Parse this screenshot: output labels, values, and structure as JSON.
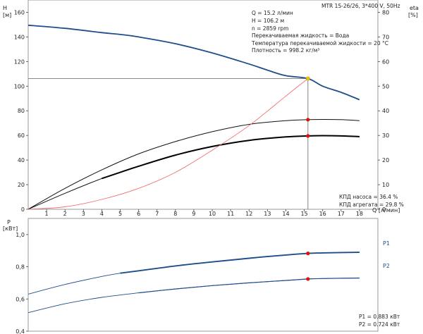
{
  "chart_data": [
    {
      "type": "line",
      "title": "MTR 1S-26/26, 3*400 V, 50Hz",
      "xlabel": "Q [л/мин]",
      "ylabel_left": "H",
      "ylabel_left_unit": "[м]",
      "ylabel_right": "eta",
      "ylabel_right_unit": "[%]",
      "xlim": [
        0,
        19
      ],
      "ylim_left": [
        0,
        170
      ],
      "ylim_right": [
        0,
        85
      ],
      "x_ticks": [
        1,
        2,
        3,
        4,
        5,
        6,
        7,
        8,
        9,
        10,
        11,
        12,
        13,
        14,
        15,
        16,
        17,
        18
      ],
      "y_ticks_left": [
        0,
        20,
        40,
        60,
        80,
        100,
        120,
        140,
        160
      ],
      "y_ticks_right": [
        0,
        10,
        20,
        30,
        40,
        50,
        60,
        70,
        80
      ],
      "duty_point": {
        "Q": 15.2,
        "H": 106.2
      },
      "info": [
        "Q = 15.2 л/мин",
        "H = 106.2 м",
        "n = 2859 rpm",
        "Перекачиваемая жидкость = Вода",
        "Температура перекачиваемой жидкости = 20 °C",
        "Плотность = 998.2 кг/м³"
      ],
      "efficiency_text": [
        "КПД насоса = 36.4 %",
        "КПД агрегата = 29.8 %"
      ],
      "series": [
        {
          "key": "H",
          "axis": "left",
          "x": [
            0,
            2,
            4,
            5,
            6,
            8,
            10,
            12,
            13,
            14,
            15.2,
            16,
            17,
            18
          ],
          "values": [
            149.5,
            147,
            143.5,
            142,
            140,
            134.5,
            127,
            118,
            113,
            108.5,
            106.2,
            100,
            95,
            89
          ]
        },
        {
          "key": "pump_eff",
          "axis": "right",
          "x": [
            0,
            2,
            4,
            6,
            8,
            10,
            12,
            14,
            15.2,
            16,
            17,
            18
          ],
          "values": [
            0,
            8.5,
            16,
            22.5,
            27.5,
            31.5,
            34.5,
            36,
            36.4,
            36.5,
            36.4,
            36
          ]
        },
        {
          "key": "unit_eff",
          "axis": "right",
          "x": [
            0,
            2,
            4,
            5,
            6,
            8,
            10,
            12,
            14,
            15.2,
            16,
            17,
            18
          ],
          "values": [
            0,
            6.5,
            12.5,
            15,
            17.5,
            22,
            25.5,
            28,
            29.4,
            29.8,
            29.9,
            29.8,
            29.5
          ]
        },
        {
          "key": "system",
          "axis": "left",
          "x": [
            0,
            2,
            4,
            6,
            8,
            10,
            12,
            14,
            15.2
          ],
          "values": [
            0,
            2,
            8,
            17,
            30,
            48,
            68,
            92,
            106.2
          ]
        }
      ],
      "markers": [
        {
          "x": 15.2,
          "y": 106.2,
          "axis": "left",
          "color": "#f2c200"
        },
        {
          "x": 15.2,
          "y": 36.4,
          "axis": "right",
          "color": "#e01010"
        },
        {
          "x": 15.2,
          "y": 29.8,
          "axis": "right",
          "color": "#e01010"
        }
      ],
      "colors": {
        "H": "#1f4e8c",
        "pump_eff": "#111111",
        "unit_eff": "#111111",
        "system": "#f07070"
      }
    },
    {
      "type": "line",
      "ylabel": "P",
      "ylabel_unit": "[кВт]",
      "xlim": [
        0,
        19
      ],
      "ylim": [
        0.4,
        1.1
      ],
      "y_ticks": [
        0.4,
        0.6,
        0.8,
        1.0
      ],
      "y_tick_labels": [
        "0,4",
        "0,6",
        "0,8",
        "1,0"
      ],
      "series": [
        {
          "name": "P1",
          "x": [
            0,
            2,
            4,
            5,
            6,
            8,
            10,
            12,
            14,
            15.2,
            16,
            18
          ],
          "values": [
            0.63,
            0.69,
            0.74,
            0.76,
            0.775,
            0.805,
            0.83,
            0.853,
            0.873,
            0.883,
            0.886,
            0.89
          ]
        },
        {
          "name": "P2",
          "x": [
            0,
            2,
            4,
            6,
            8,
            10,
            12,
            14,
            15.2,
            16,
            18
          ],
          "values": [
            0.515,
            0.57,
            0.61,
            0.638,
            0.662,
            0.683,
            0.7,
            0.715,
            0.724,
            0.727,
            0.73
          ]
        }
      ],
      "markers": [
        {
          "x": 15.2,
          "y": 0.883,
          "color": "#e01010"
        },
        {
          "x": 15.2,
          "y": 0.724,
          "color": "#e01010"
        }
      ],
      "readout": [
        "P1 = 0.883 кВт",
        "P2 = 0.724 кВт"
      ],
      "colors": {
        "P1": "#1f4e8c",
        "P2": "#1f4e8c"
      }
    }
  ]
}
